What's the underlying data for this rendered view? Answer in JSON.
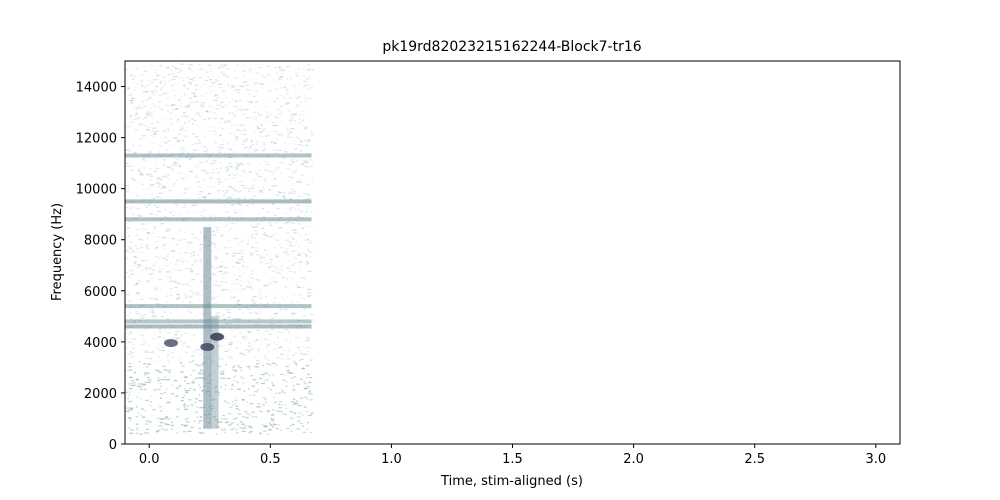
{
  "chart_data": {
    "type": "heatmap",
    "title": "pk19rd82023215162244-Block7-tr16",
    "xlabel": "Time, stim-aligned (s)",
    "ylabel": "Frequency (Hz)",
    "xlim": [
      -0.1,
      3.1
    ],
    "ylim": [
      0,
      15000
    ],
    "xticks": [
      0.0,
      0.5,
      1.0,
      1.5,
      2.0,
      2.5,
      3.0
    ],
    "xtick_labels": [
      "0.0",
      "0.5",
      "1.0",
      "1.5",
      "2.0",
      "2.5",
      "3.0"
    ],
    "yticks": [
      0,
      2000,
      4000,
      6000,
      8000,
      10000,
      12000,
      14000
    ],
    "ytick_labels": [
      "0",
      "2000",
      "4000",
      "6000",
      "8000",
      "10000",
      "12000",
      "14000"
    ],
    "data_time_range": [
      -0.1,
      0.67
    ],
    "data_freq_range": [
      400,
      14900
    ],
    "colormap": "bone_r",
    "grid": false,
    "horizontal_bands": [
      {
        "freq": 4600,
        "intensity": 0.6
      },
      {
        "freq": 4800,
        "intensity": 0.5
      },
      {
        "freq": 5400,
        "intensity": 0.55
      },
      {
        "freq": 8800,
        "intensity": 0.55
      },
      {
        "freq": 9500,
        "intensity": 0.6
      },
      {
        "freq": 11300,
        "intensity": 0.55
      }
    ],
    "vertical_bands": [
      {
        "time": 0.24,
        "freq_range": [
          600,
          8500
        ],
        "intensity": 0.55
      },
      {
        "time": 0.27,
        "freq_range": [
          600,
          5000
        ],
        "intensity": 0.4
      }
    ],
    "hotspots": [
      {
        "time": 0.09,
        "freq": 3950,
        "intensity": 0.75
      },
      {
        "time": 0.24,
        "freq": 3800,
        "intensity": 0.8
      },
      {
        "time": 0.28,
        "freq": 4200,
        "intensity": 0.9
      }
    ]
  }
}
